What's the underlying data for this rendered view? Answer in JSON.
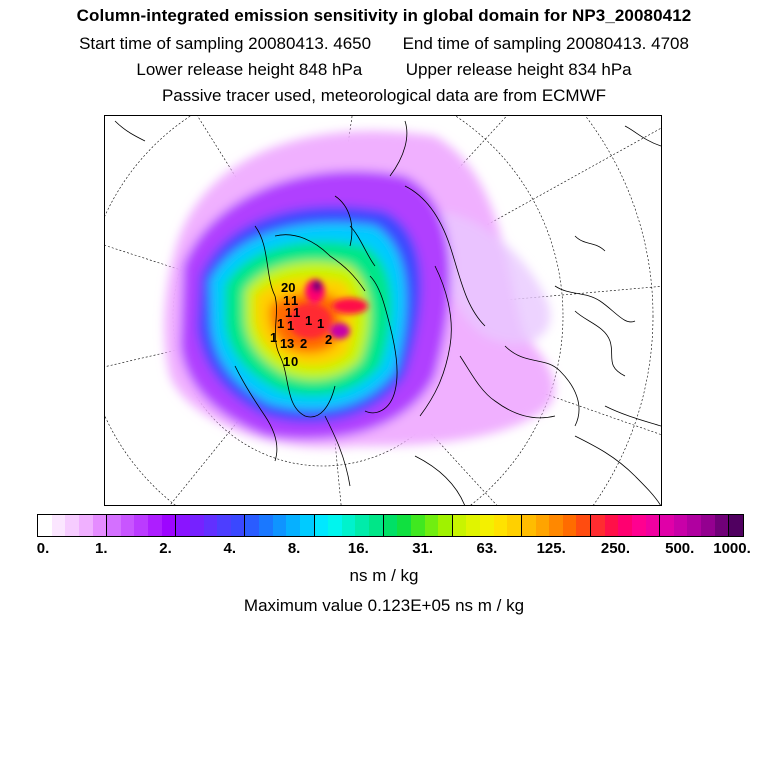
{
  "title": "Column-integrated emission sensitivity in global domain for NP3_20080412",
  "sampling": {
    "start": "Start time of sampling 20080413.  4650",
    "end": "End time of sampling 20080413.  4708"
  },
  "release": {
    "lower": "Lower release height  848 hPa",
    "upper": "Upper release height  834 hPa"
  },
  "note": "Passive tracer used, meteorological data are from ECMWF",
  "colorbar": {
    "tick_labels": [
      "0.",
      "1.",
      "2.",
      "4.",
      "8.",
      "16.",
      "31.",
      "63.",
      "125.",
      "250.",
      "500.",
      "1000."
    ],
    "colors": [
      "#ffffff",
      "#fbe6ff",
      "#f6ccff",
      "#f0b0ff",
      "#e58cff",
      "#d470ff",
      "#c855ff",
      "#bb3bff",
      "#ad1eff",
      "#9d05ff",
      "#8a14ff",
      "#7622ff",
      "#6230ff",
      "#4d3eff",
      "#3a48ff",
      "#2a5cff",
      "#1a78ff",
      "#0f94ff",
      "#06b0ff",
      "#00cbff",
      "#00e8ff",
      "#00f5ee",
      "#00f2cc",
      "#00ecaa",
      "#00e688",
      "#00e066",
      "#10e040",
      "#40e820",
      "#70ee10",
      "#a0f200",
      "#c8f400",
      "#e0f400",
      "#f4f000",
      "#ffe200",
      "#ffd000",
      "#ffbc00",
      "#ffa400",
      "#ff8800",
      "#ff6c00",
      "#ff4c10",
      "#ff2c30",
      "#ff1048",
      "#ff0070",
      "#ff0090",
      "#f000a0",
      "#e000a8",
      "#c800a8",
      "#b000a0",
      "#940090",
      "#700078",
      "#500060"
    ]
  },
  "unit": "ns m / kg",
  "max_value": "Maximum value  0.123E+05 ns m / kg",
  "map_labels": [
    "20",
    "1",
    "1",
    "1",
    "1",
    "1",
    "1",
    "1",
    "1",
    "1",
    "1",
    "3",
    "2",
    "2",
    "1",
    "0"
  ]
}
